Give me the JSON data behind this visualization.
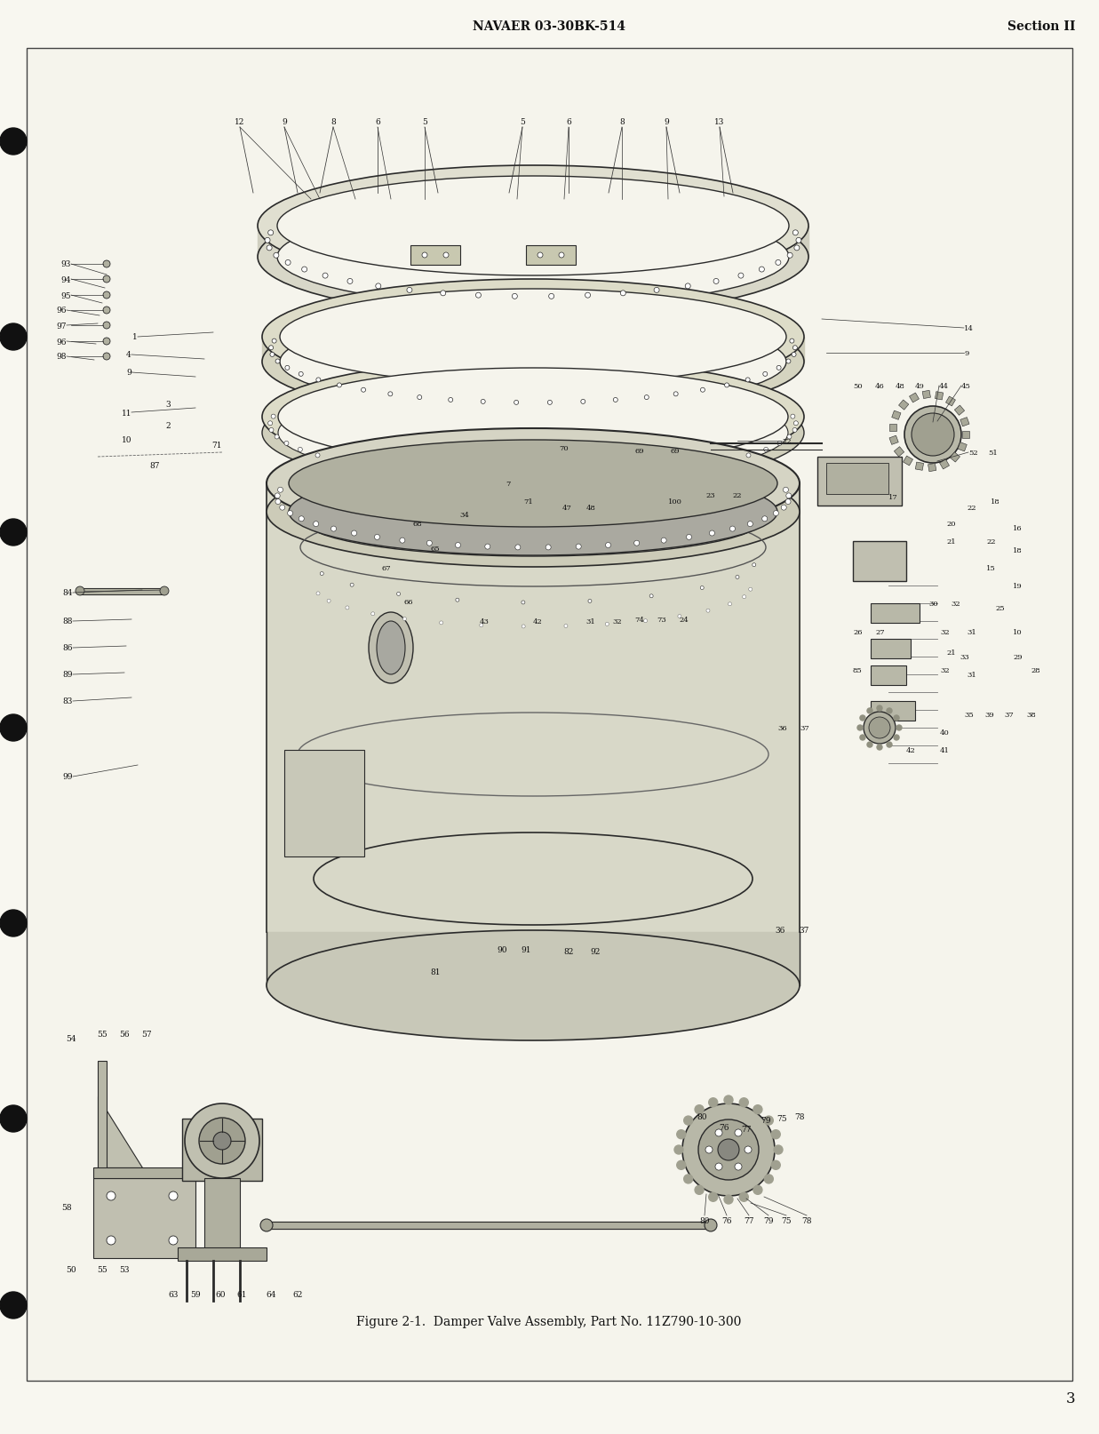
{
  "bg_color": "#f8f7f0",
  "inner_bg": "#f5f4ec",
  "border_color": "#222222",
  "text_color": "#111111",
  "line_color": "#333333",
  "header_left": "NAVAER 03-30BK-514",
  "header_right": "Section II",
  "caption": "Figure 2-1.  Damper Valve Assembly, Part No. 11Z790-10-300",
  "page_number": "3",
  "fig_width": 12.37,
  "fig_height": 16.15,
  "draw_color": "#2a2a2a",
  "metal_color": "#e8e8e0",
  "metal_dark": "#c0bfb0"
}
